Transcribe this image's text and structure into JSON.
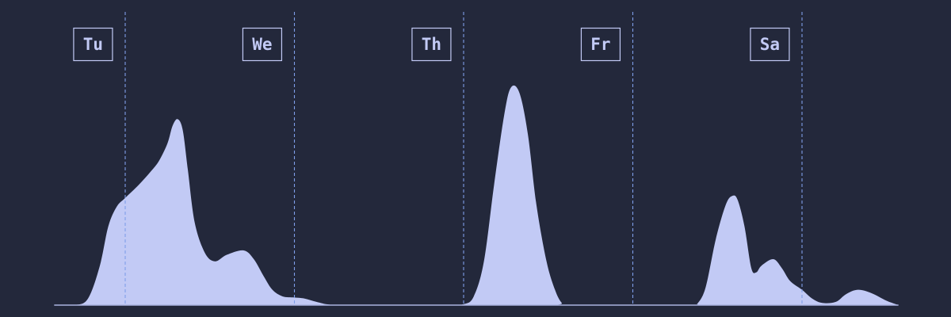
{
  "chart_data": {
    "type": "area",
    "title": "",
    "xlabel": "",
    "ylabel": "",
    "x_domain_days": [
      -0.42,
      4.57
    ],
    "ylim": [
      0,
      1.0
    ],
    "grid": false,
    "day_labels": [
      "Tu",
      "We",
      "Th",
      "Fr",
      "Sa"
    ],
    "day_boundaries_days": [
      0,
      1,
      2,
      3,
      4
    ],
    "series": [
      {
        "points": [
          [
            -0.42,
            0.0
          ],
          [
            -0.3,
            0.0
          ],
          [
            -0.22,
            0.03
          ],
          [
            -0.15,
            0.18
          ],
          [
            -0.1,
            0.36
          ],
          [
            -0.05,
            0.45
          ],
          [
            0.0,
            0.49
          ],
          [
            0.08,
            0.55
          ],
          [
            0.15,
            0.61
          ],
          [
            0.2,
            0.66
          ],
          [
            0.25,
            0.74
          ],
          [
            0.28,
            0.82
          ],
          [
            0.31,
            0.85
          ],
          [
            0.34,
            0.8
          ],
          [
            0.37,
            0.62
          ],
          [
            0.41,
            0.38
          ],
          [
            0.47,
            0.24
          ],
          [
            0.53,
            0.2
          ],
          [
            0.6,
            0.23
          ],
          [
            0.7,
            0.25
          ],
          [
            0.76,
            0.21
          ],
          [
            0.82,
            0.13
          ],
          [
            0.87,
            0.07
          ],
          [
            0.93,
            0.04
          ],
          [
            1.0,
            0.035
          ],
          [
            1.06,
            0.03
          ],
          [
            1.13,
            0.015
          ],
          [
            1.2,
            0.003
          ],
          [
            1.3,
            0.0
          ],
          [
            1.9,
            0.0
          ],
          [
            2.0,
            0.004
          ],
          [
            2.06,
            0.04
          ],
          [
            2.12,
            0.2
          ],
          [
            2.18,
            0.55
          ],
          [
            2.24,
            0.87
          ],
          [
            2.28,
            0.995
          ],
          [
            2.33,
            0.97
          ],
          [
            2.38,
            0.78
          ],
          [
            2.43,
            0.46
          ],
          [
            2.49,
            0.2
          ],
          [
            2.54,
            0.07
          ],
          [
            2.58,
            0.01
          ],
          [
            2.62,
            0.0
          ],
          [
            3.35,
            0.0
          ],
          [
            3.38,
            0.005
          ],
          [
            3.43,
            0.08
          ],
          [
            3.49,
            0.3
          ],
          [
            3.55,
            0.46
          ],
          [
            3.59,
            0.5
          ],
          [
            3.62,
            0.48
          ],
          [
            3.66,
            0.36
          ],
          [
            3.7,
            0.17
          ],
          [
            3.73,
            0.15
          ],
          [
            3.76,
            0.18
          ],
          [
            3.83,
            0.21
          ],
          [
            3.88,
            0.17
          ],
          [
            3.93,
            0.11
          ],
          [
            4.0,
            0.07
          ],
          [
            4.06,
            0.03
          ],
          [
            4.12,
            0.01
          ],
          [
            4.2,
            0.015
          ],
          [
            4.26,
            0.05
          ],
          [
            4.33,
            0.07
          ],
          [
            4.41,
            0.055
          ],
          [
            4.5,
            0.02
          ],
          [
            4.57,
            0.0
          ]
        ]
      }
    ]
  },
  "colors": {
    "background": "#23283b",
    "area_fill": "#c2caf5",
    "baseline": "#aab3e0",
    "divider": "#7f9ee8",
    "label_box": "#c2caf5",
    "label_text": "#c2caf5"
  }
}
